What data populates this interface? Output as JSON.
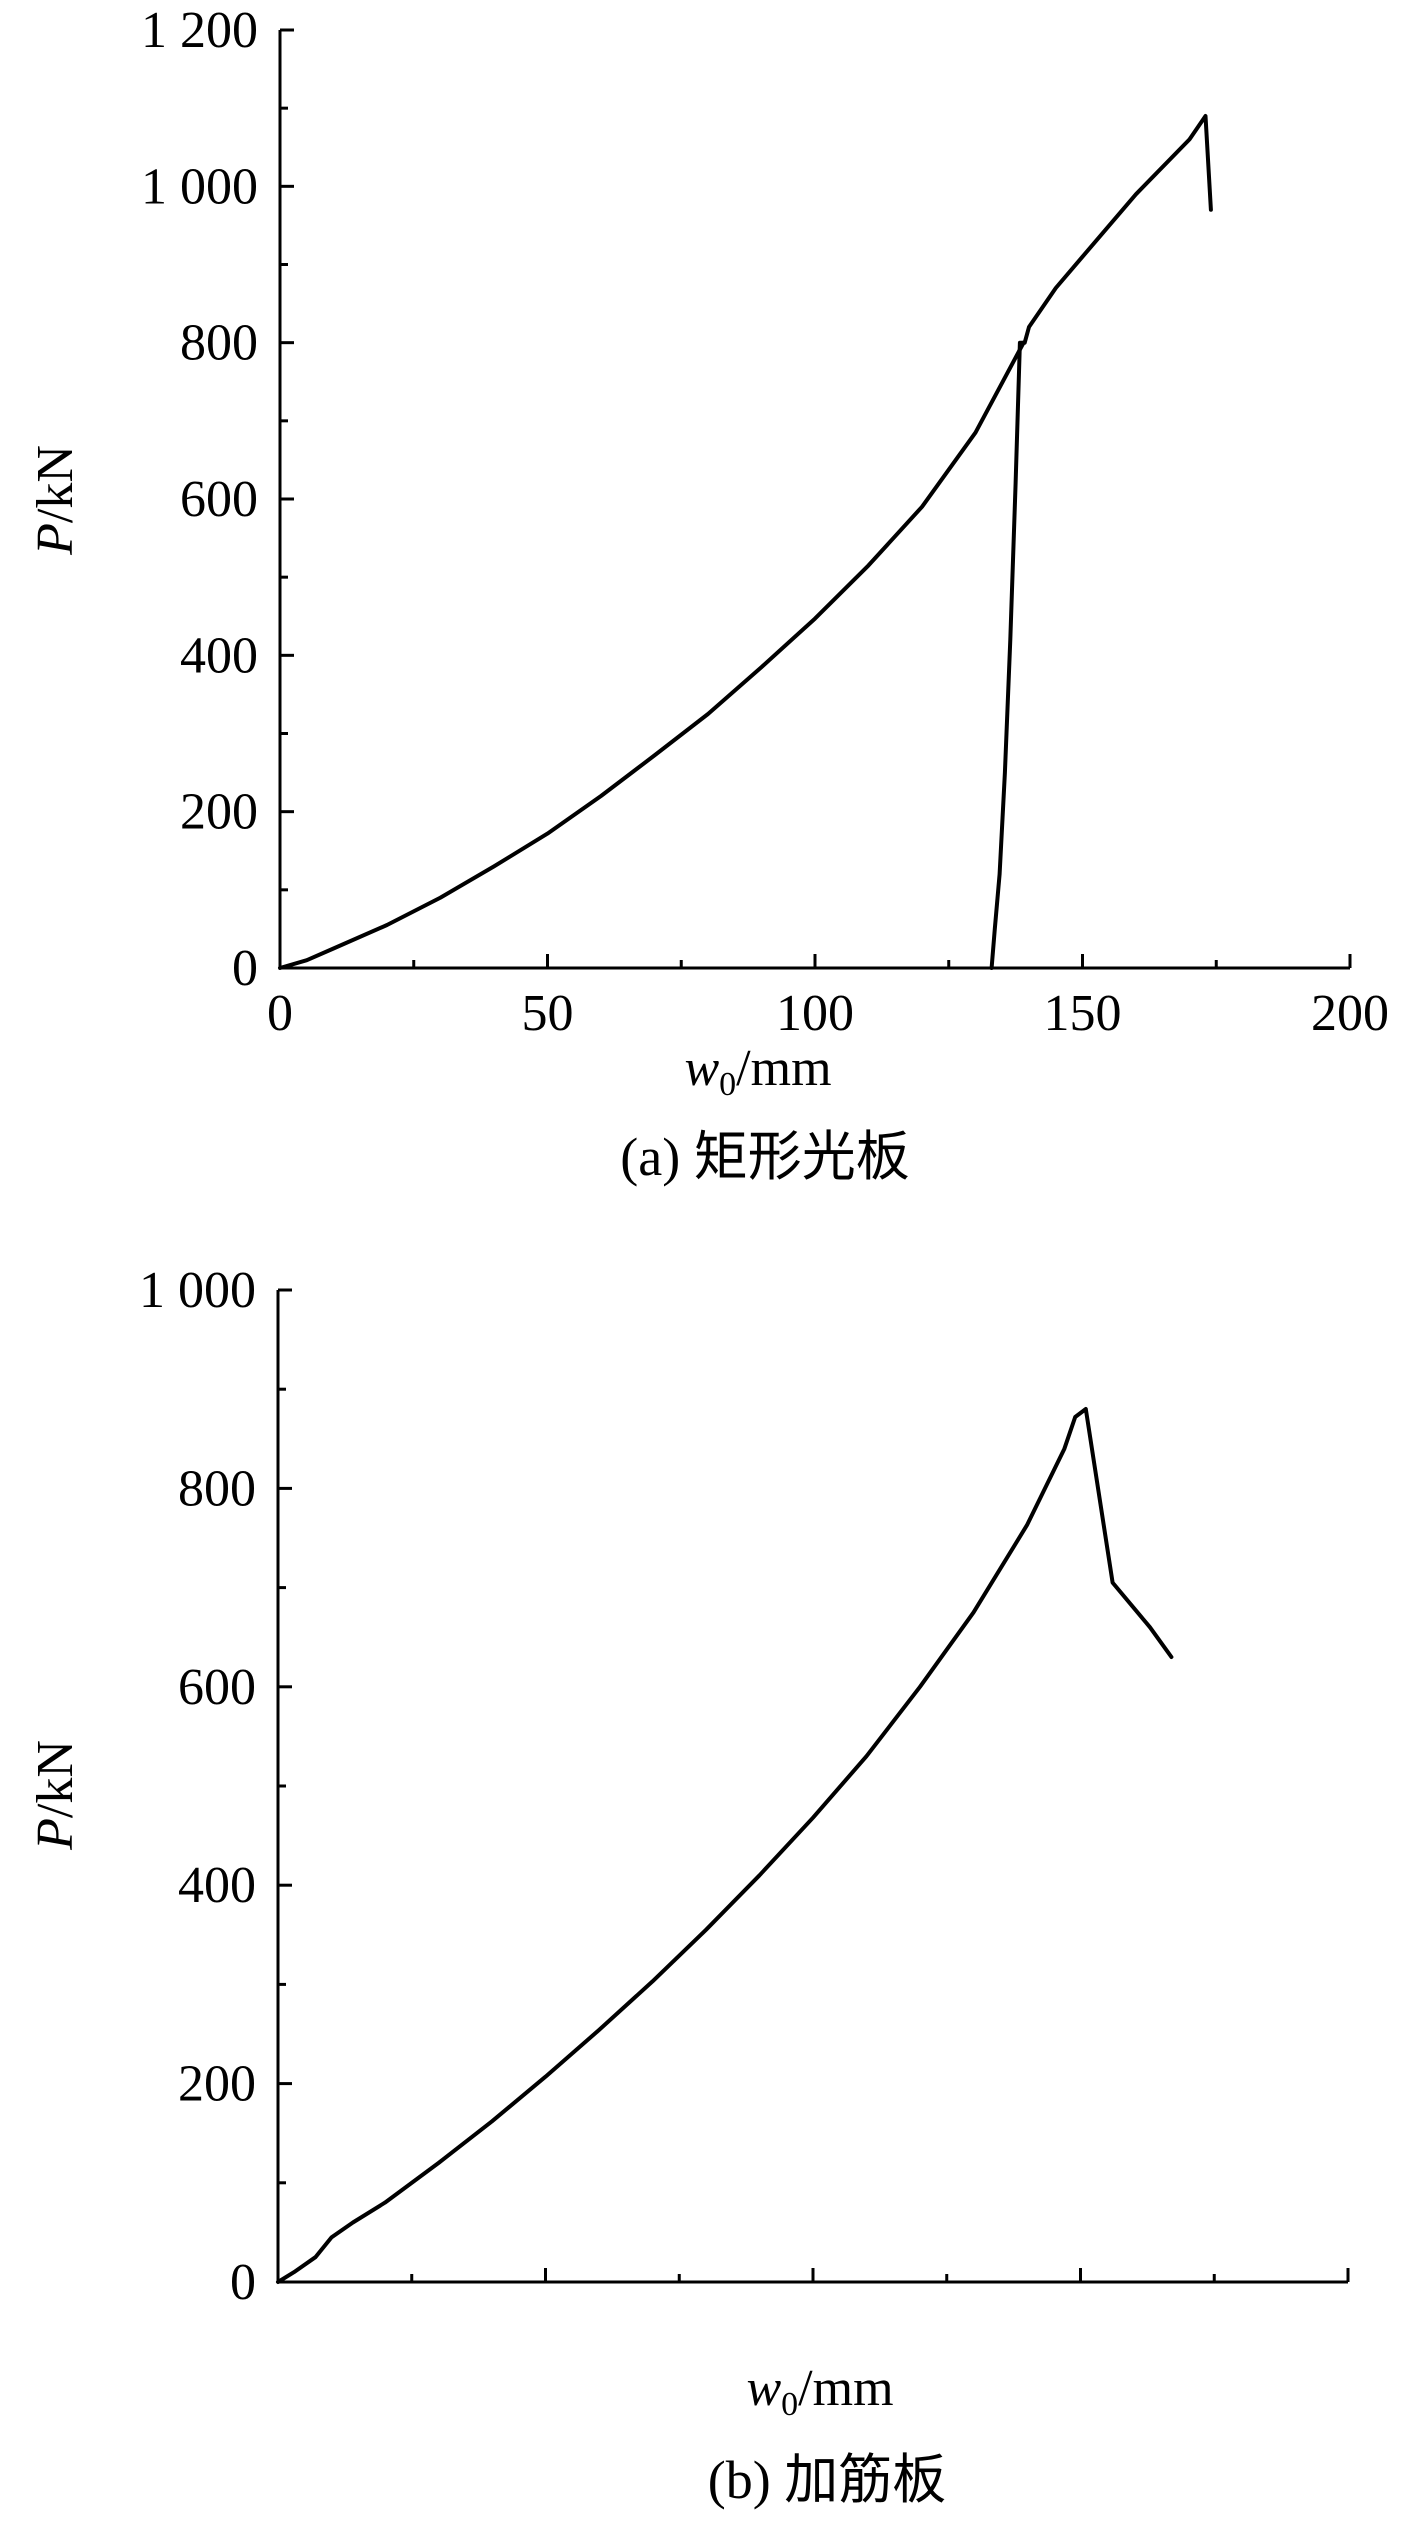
{
  "chart_data": [
    {
      "type": "line",
      "caption": "(a) 矩形光板",
      "xlabel": {
        "italic": "w",
        "sub": "0",
        "rest": "/mm"
      },
      "ylabel": {
        "italic": "P",
        "rest": "/kN"
      },
      "xlim": [
        0,
        200
      ],
      "ylim": [
        0,
        1200
      ],
      "x_ticks": [
        0,
        50,
        100,
        150,
        200
      ],
      "x_tick_labels": [
        "0",
        "50",
        "100",
        "150",
        "200"
      ],
      "x_minor_step": 25,
      "y_ticks": [
        0,
        200,
        400,
        600,
        800,
        1000,
        1200
      ],
      "y_tick_labels": [
        "0",
        "200",
        "400",
        "600",
        "800",
        "1 000",
        "1 200"
      ],
      "y_minor_step": 100,
      "grid": false,
      "series": [
        {
          "x": [
            0,
            5,
            10,
            20,
            30,
            40,
            50,
            60,
            70,
            80,
            90,
            100,
            110,
            120,
            130,
            139
          ],
          "y": [
            0,
            10,
            25,
            55,
            90,
            130,
            172,
            220,
            272,
            325,
            385,
            447,
            515,
            590,
            685,
            800
          ]
        },
        {
          "x": [
            133,
            133.6,
            134.5,
            135.5,
            136.5,
            137.5,
            138.3,
            139.2,
            140,
            145,
            150,
            160,
            170,
            173,
            174
          ],
          "y": [
            0,
            50,
            120,
            250,
            420,
            620,
            800,
            800,
            820,
            870,
            910,
            990,
            1060,
            1090,
            970
          ]
        }
      ]
    },
    {
      "type": "line",
      "caption": "(b) 加筋板",
      "xlabel": {
        "italic": "w",
        "sub": "0",
        "rest": "/mm"
      },
      "ylabel": {
        "italic": "P",
        "rest": "/kN"
      },
      "xlim": [
        0,
        200
      ],
      "ylim": [
        0,
        1000
      ],
      "x_ticks": [
        0,
        50,
        100,
        150,
        200
      ],
      "x_tick_labels": [],
      "x_minor_step": 25,
      "y_ticks": [
        0,
        200,
        400,
        600,
        800,
        1000
      ],
      "y_tick_labels": [
        "0",
        "200",
        "400",
        "600",
        "800",
        "1 000"
      ],
      "y_minor_step": 100,
      "grid": false,
      "series": [
        {
          "x": [
            0,
            3,
            7,
            10,
            14,
            20,
            30,
            40,
            50,
            60,
            70,
            80,
            90,
            100,
            110,
            120,
            130,
            140,
            147,
            149,
            151,
            156,
            163,
            167
          ],
          "y": [
            0,
            10,
            25,
            45,
            60,
            80,
            120,
            162,
            207,
            254,
            303,
            355,
            410,
            468,
            530,
            600,
            675,
            763,
            840,
            872,
            880,
            705,
            660,
            630
          ]
        }
      ]
    }
  ]
}
